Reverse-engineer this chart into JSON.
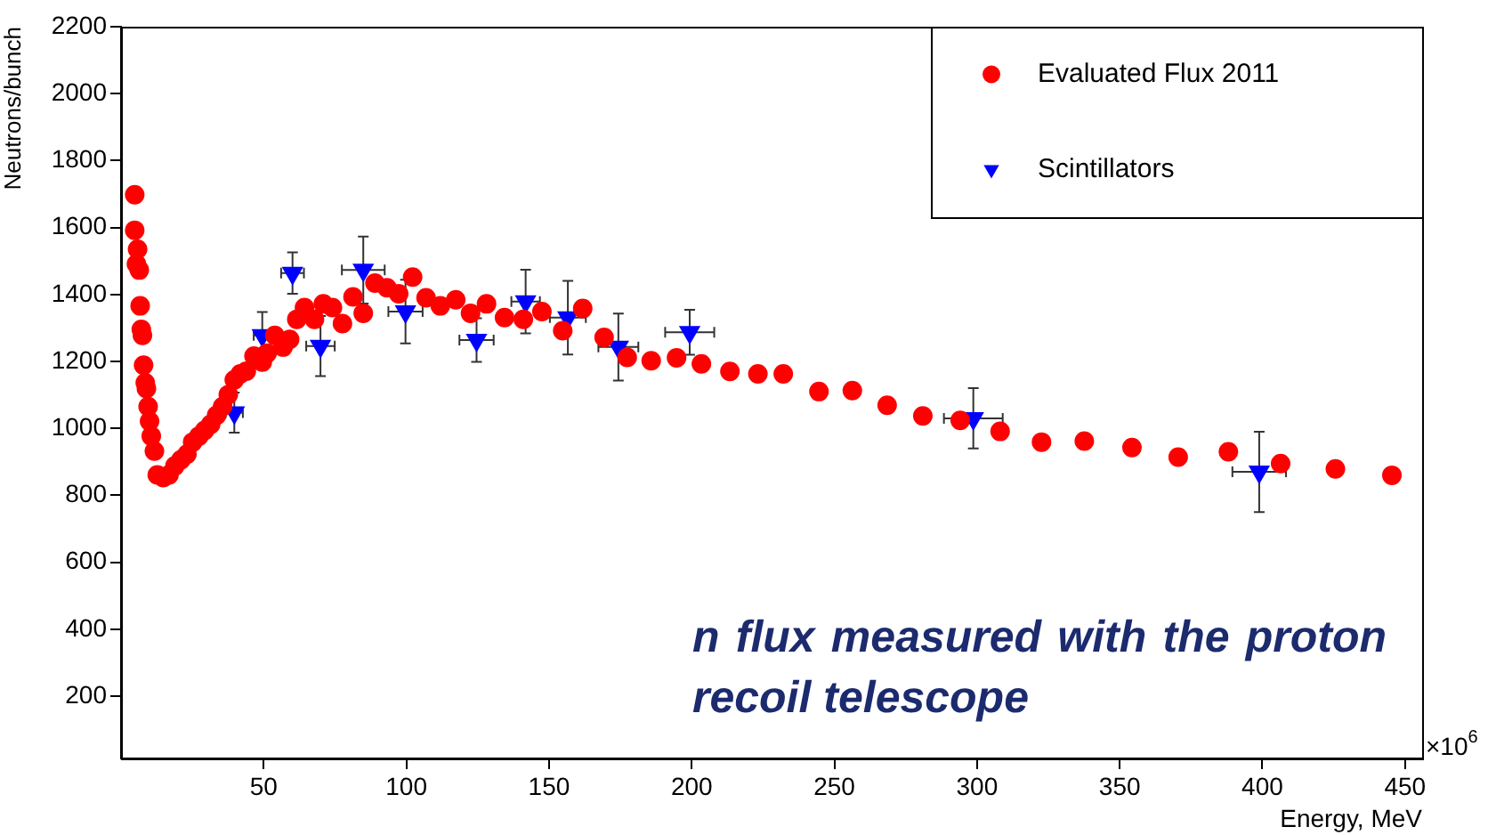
{
  "chart_data": {
    "type": "scatter",
    "xlabel": "Energy, MeV",
    "ylabel": "Neutrons/bunch",
    "xlim": [
      0,
      456
    ],
    "ylim": [
      14,
      2200
    ],
    "xticks": [
      50,
      100,
      150,
      200,
      250,
      300,
      350,
      400,
      450
    ],
    "yticks": [
      200,
      400,
      600,
      800,
      1000,
      1200,
      1400,
      1600,
      1800,
      2000,
      2200
    ],
    "grid": false,
    "legend": "top right",
    "annotations": [
      "×10$^{6}$",
      "n flux measured with the proton recoil telescope"
    ],
    "series": [
      {
        "name": "Evaluated Flux 2011",
        "color": "#ff0000",
        "marker": "circle",
        "x": [
          4.8,
          4.8,
          5.8,
          5.4,
          6.4,
          6.7,
          7.1,
          7.5,
          7.9,
          8.5,
          8.9,
          9.5,
          10.0,
          10.6,
          11.7,
          12.7,
          14.8,
          16.8,
          18.9,
          21.0,
          23.1,
          25.1,
          27.3,
          29.3,
          31.4,
          33.5,
          35.6,
          37.6,
          39.7,
          41.8,
          43.9,
          46.6,
          49.5,
          51.2,
          53.9,
          56.8,
          59.1,
          61.6,
          64.3,
          67.8,
          70.9,
          74.1,
          77.6,
          81.3,
          84.9,
          89.0,
          93.2,
          97.3,
          102.2,
          106.9,
          111.9,
          117.3,
          122.5,
          128.1,
          134.4,
          141.0,
          147.5,
          154.8,
          161.8,
          169.3,
          177.4,
          185.8,
          194.7,
          203.4,
          213.4,
          223.2,
          232.1,
          244.6,
          256.3,
          268.5,
          281.0,
          294.1,
          308.1,
          322.6,
          337.6,
          354.3,
          370.5,
          388.1,
          406.4,
          425.6,
          445.4
        ],
        "values": [
          1698,
          1592,
          1535,
          1491,
          1473,
          1366,
          1296,
          1278,
          1189,
          1136,
          1119,
          1065,
          1021,
          977,
          932,
          861,
          853,
          861,
          888,
          906,
          923,
          959,
          977,
          994,
          1012,
          1039,
          1065,
          1101,
          1145,
          1163,
          1171,
          1216,
          1198,
          1225,
          1278,
          1243,
          1266,
          1326,
          1361,
          1326,
          1372,
          1361,
          1313,
          1393,
          1344,
          1434,
          1420,
          1402,
          1452,
          1390,
          1366,
          1384,
          1344,
          1372,
          1331,
          1326,
          1349,
          1292,
          1358,
          1272,
          1212,
          1202,
          1211,
          1193,
          1170,
          1163,
          1163,
          1110,
          1113,
          1069,
          1037,
          1024,
          991,
          959,
          962,
          943,
          914,
          930,
          895,
          879,
          860
        ]
      },
      {
        "name": "Scintillators",
        "color": "#0000ff",
        "marker": "triangle",
        "x": [
          39.7,
          49.5,
          60.1,
          69.9,
          84.9,
          99.7,
          124.6,
          141.8,
          156.6,
          174.3,
          199.3,
          298.7,
          398.9
        ],
        "values": [
          1047,
          1278,
          1464,
          1246,
          1473,
          1349,
          1264,
          1379,
          1331,
          1243,
          1287,
          1030,
          870
        ],
        "errors": [
          60,
          70,
          62,
          90,
          100,
          95,
          65,
          95,
          110,
          100,
          67,
          90,
          120
        ],
        "xerrors": [
          3,
          3,
          4,
          5,
          7.5,
          6,
          6,
          5,
          6.3,
          7,
          8.6,
          10.3,
          9.4
        ]
      }
    ]
  }
}
